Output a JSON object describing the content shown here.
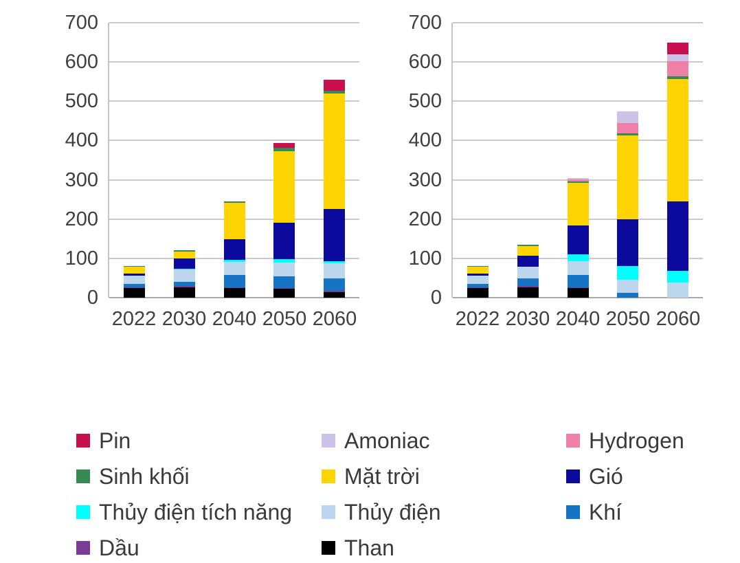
{
  "axes": {
    "y_tick_labels": [
      "0",
      "100",
      "200",
      "300",
      "400",
      "500",
      "600",
      "700"
    ],
    "x_tick_labels": [
      "2022",
      "2030",
      "2040",
      "2050",
      "2060"
    ]
  },
  "legend": {
    "items": [
      {
        "label": "Pin",
        "color": "#C9104E"
      },
      {
        "label": "Amoniac",
        "color": "#CCC1E6"
      },
      {
        "label": "Hydrogen",
        "color": "#EF7FA6"
      },
      {
        "label": "Sinh khối",
        "color": "#348A52"
      },
      {
        "label": "Mặt trời",
        "color": "#FFD400"
      },
      {
        "label": "Gió",
        "color": "#0B0A9C"
      },
      {
        "label": "Thủy điện tích năng",
        "color": "#00FFFF"
      },
      {
        "label": "Thủy điện",
        "color": "#BCD6EE"
      },
      {
        "label": "Khí",
        "color": "#1674C7"
      },
      {
        "label": "Dầu",
        "color": "#7C3A97"
      },
      {
        "label": "Than",
        "color": "#000000"
      }
    ]
  },
  "chart_data": [
    {
      "type": "bar",
      "stacked": true,
      "title": "",
      "xlabel": "",
      "ylabel": "",
      "categories": [
        "2022",
        "2030",
        "2040",
        "2050",
        "2060"
      ],
      "ylim": [
        0,
        700
      ],
      "yticks": [
        0,
        100,
        200,
        300,
        400,
        500,
        600,
        700
      ],
      "grid": true,
      "legend_position": "bottom-shared",
      "bar_totals_approx": [
        80,
        120,
        245,
        395,
        555
      ],
      "series": [
        {
          "name": "Than",
          "color": "#000000",
          "values": [
            24,
            27,
            25,
            22,
            14
          ]
        },
        {
          "name": "Dầu",
          "color": "#7C3A97",
          "values": [
            2,
            2,
            2,
            3,
            3
          ]
        },
        {
          "name": "Khí",
          "color": "#1674C7",
          "values": [
            9,
            12,
            30,
            30,
            32
          ]
        },
        {
          "name": "Thủy điện",
          "color": "#BCD6EE",
          "values": [
            21,
            30,
            34,
            35,
            38
          ]
        },
        {
          "name": "Thủy điện tích năng",
          "color": "#00FFFF",
          "values": [
            0,
            3,
            5,
            8,
            5
          ]
        },
        {
          "name": "Gió",
          "color": "#0B0A9C",
          "values": [
            6,
            26,
            52,
            93,
            133
          ]
        },
        {
          "name": "Mặt trời",
          "color": "#FFD400",
          "values": [
            16,
            18,
            94,
            182,
            295
          ]
        },
        {
          "name": "Sinh khối",
          "color": "#348A52",
          "values": [
            2,
            2,
            3,
            9,
            7
          ]
        },
        {
          "name": "Hydrogen",
          "color": "#EF7FA6",
          "values": [
            0,
            0,
            0,
            0,
            0
          ]
        },
        {
          "name": "Amoniac",
          "color": "#CCC1E6",
          "values": [
            0,
            0,
            0,
            0,
            0
          ]
        },
        {
          "name": "Pin",
          "color": "#C9104E",
          "values": [
            0,
            0,
            0,
            11,
            28
          ]
        }
      ]
    },
    {
      "type": "bar",
      "stacked": true,
      "title": "",
      "xlabel": "",
      "ylabel": "",
      "categories": [
        "2022",
        "2030",
        "2040",
        "2050",
        "2060"
      ],
      "ylim": [
        0,
        700
      ],
      "yticks": [
        0,
        100,
        200,
        300,
        400,
        500,
        600,
        700
      ],
      "grid": true,
      "legend_position": "bottom-shared",
      "bar_totals_approx": [
        80,
        135,
        305,
        475,
        650
      ],
      "series": [
        {
          "name": "Than",
          "color": "#000000",
          "values": [
            24,
            27,
            24,
            0,
            0
          ]
        },
        {
          "name": "Dầu",
          "color": "#7C3A97",
          "values": [
            2,
            2,
            2,
            0,
            0
          ]
        },
        {
          "name": "Khí",
          "color": "#1674C7",
          "values": [
            9,
            20,
            32,
            12,
            0
          ]
        },
        {
          "name": "Thủy điện",
          "color": "#BCD6EE",
          "values": [
            21,
            30,
            34,
            33,
            38
          ]
        },
        {
          "name": "Thủy điện tích năng",
          "color": "#00FFFF",
          "values": [
            0,
            0,
            18,
            35,
            30
          ]
        },
        {
          "name": "Gió",
          "color": "#0B0A9C",
          "values": [
            6,
            28,
            73,
            120,
            177
          ]
        },
        {
          "name": "Mặt trời",
          "color": "#FFD400",
          "values": [
            16,
            25,
            110,
            213,
            312
          ]
        },
        {
          "name": "Sinh khối",
          "color": "#348A52",
          "values": [
            2,
            3,
            3,
            5,
            7
          ]
        },
        {
          "name": "Hydrogen",
          "color": "#EF7FA6",
          "values": [
            0,
            0,
            5,
            27,
            38
          ]
        },
        {
          "name": "Amoniac",
          "color": "#CCC1E6",
          "values": [
            0,
            0,
            4,
            30,
            18
          ]
        },
        {
          "name": "Pin",
          "color": "#C9104E",
          "values": [
            0,
            0,
            0,
            0,
            30
          ]
        }
      ]
    }
  ]
}
